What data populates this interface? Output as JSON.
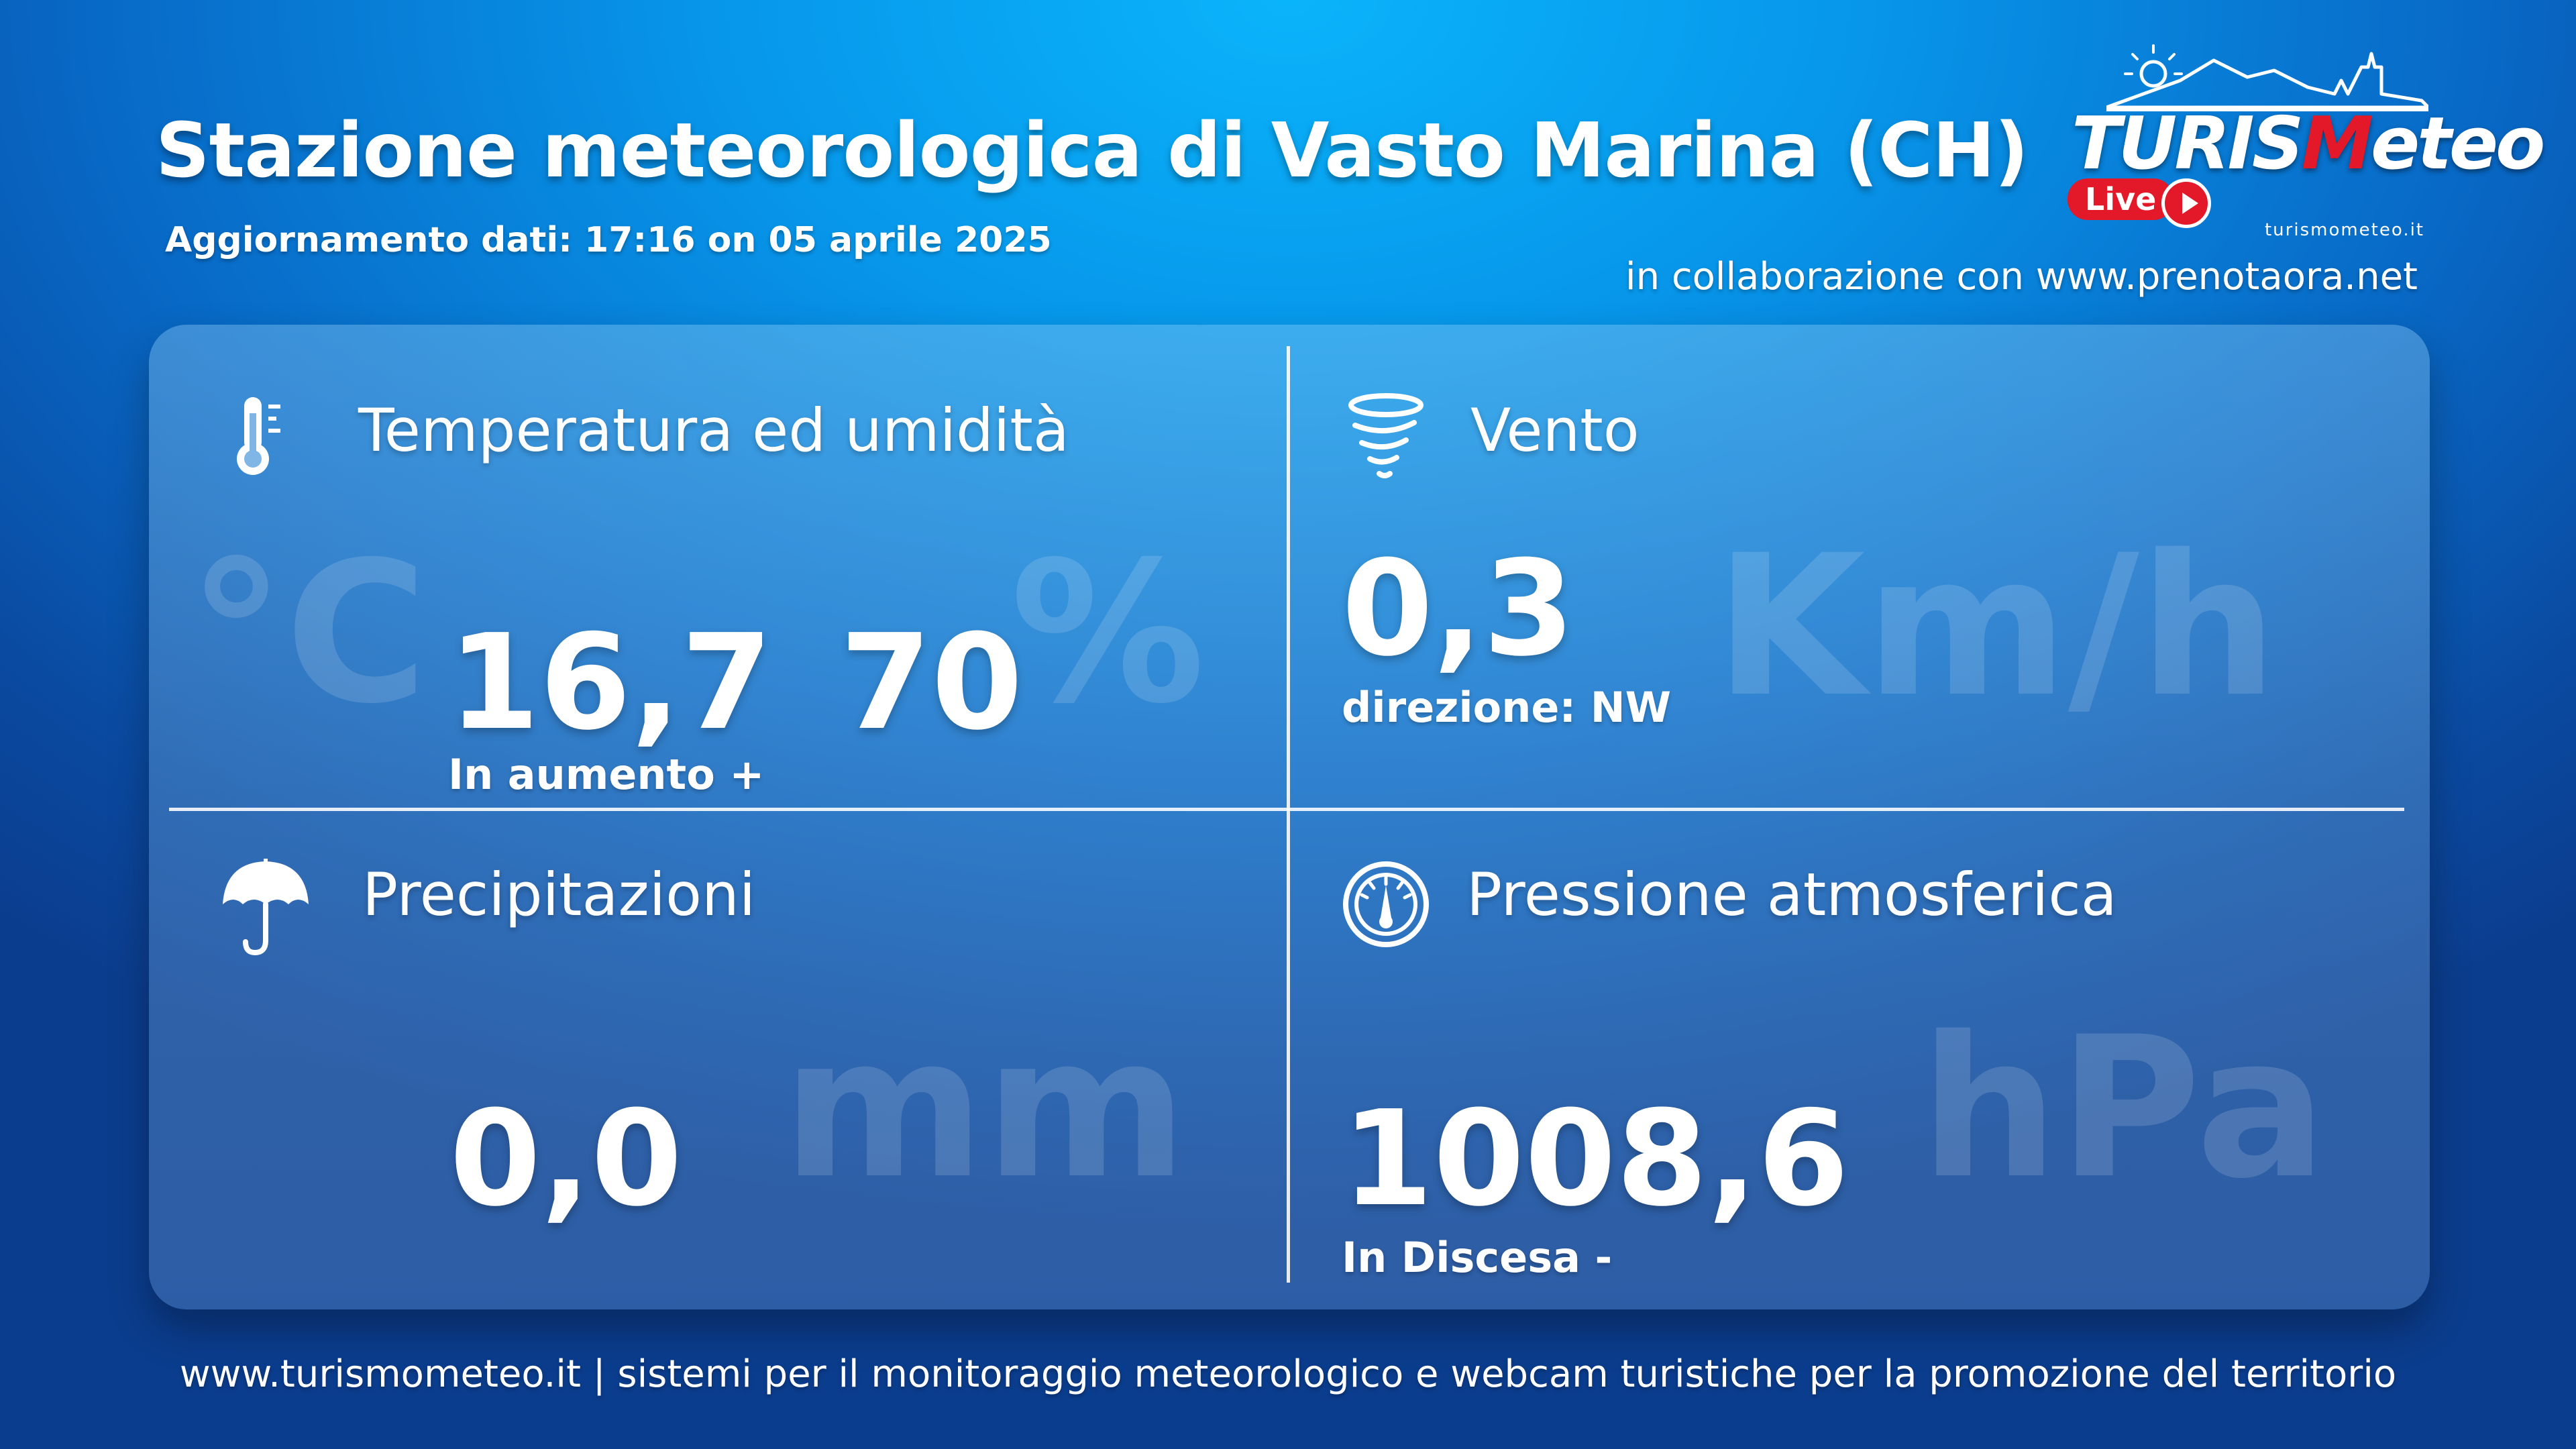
{
  "header": {
    "title": "Stazione meteorologica di Vasto Marina (CH)",
    "updated": "Aggiornamento dati: 17:16 on 05 aprile 2025",
    "collaboration": "in collaborazione con www.prenotaora.net"
  },
  "logo": {
    "brand_part1": "TURIS",
    "brand_part2": "M",
    "brand_part3": "eteo",
    "live_label": "Live",
    "url": "turismometeo.it",
    "accent_color": "#e3192a"
  },
  "temperature": {
    "title": "Temperatura ed umidità",
    "icon": "thermometer-icon",
    "temp_unit": "°C",
    "temp_value": "16,7",
    "trend": "In aumento +",
    "humidity_value": "70",
    "humidity_unit": "%"
  },
  "wind": {
    "title": "Vento",
    "icon": "tornado-icon",
    "speed_value": "0,3",
    "direction": "direzione: NW",
    "unit": "Km/h"
  },
  "precipitation": {
    "title": "Precipitazioni",
    "icon": "umbrella-icon",
    "value": "0,0",
    "unit": "mm"
  },
  "pressure": {
    "title": "Pressione atmosferica",
    "icon": "gauge-icon",
    "value": "1008,6",
    "trend": "In Discesa -",
    "unit": "hPa"
  },
  "footer": {
    "text": "www.turismometeo.it | sistemi per il monitoraggio meteorologico e webcam turistiche per la promozione del territorio"
  }
}
